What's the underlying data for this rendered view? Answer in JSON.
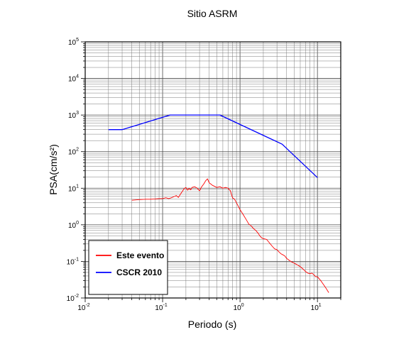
{
  "chart_data": {
    "type": "line",
    "title": "Sitio ASRM",
    "xlabel": "Periodo (s)",
    "ylabel": "PSA(cm/s²)",
    "xscale": "log",
    "yscale": "log",
    "xlim": [
      0.01,
      20
    ],
    "ylim": [
      0.01,
      100000
    ],
    "grid": true,
    "legend_position": "bottom-left",
    "x_ticks": [
      {
        "value": 0.01,
        "base": "10",
        "exp": "-2"
      },
      {
        "value": 0.1,
        "base": "10",
        "exp": "-1"
      },
      {
        "value": 1,
        "base": "10",
        "exp": "0"
      },
      {
        "value": 10,
        "base": "10",
        "exp": "1"
      }
    ],
    "y_ticks": [
      {
        "value": 0.01,
        "base": "10",
        "exp": "-2"
      },
      {
        "value": 0.1,
        "base": "10",
        "exp": "-1"
      },
      {
        "value": 1,
        "base": "10",
        "exp": "0"
      },
      {
        "value": 10,
        "base": "10",
        "exp": "1"
      },
      {
        "value": 100,
        "base": "10",
        "exp": "2"
      },
      {
        "value": 1000,
        "base": "10",
        "exp": "3"
      },
      {
        "value": 10000,
        "base": "10",
        "exp": "4"
      },
      {
        "value": 100000,
        "base": "10",
        "exp": "5"
      }
    ],
    "series": [
      {
        "name": "Este evento",
        "color": "#ff0000",
        "x": [
          0.04,
          0.05,
          0.06,
          0.07,
          0.08,
          0.09,
          0.1,
          0.11,
          0.12,
          0.13,
          0.14,
          0.15,
          0.16,
          0.17,
          0.18,
          0.19,
          0.2,
          0.21,
          0.22,
          0.23,
          0.24,
          0.26,
          0.28,
          0.3,
          0.32,
          0.34,
          0.36,
          0.38,
          0.4,
          0.42,
          0.44,
          0.46,
          0.5,
          0.55,
          0.6,
          0.65,
          0.7,
          0.75,
          0.8,
          0.85,
          0.9,
          0.95,
          1.0,
          1.1,
          1.2,
          1.3,
          1.4,
          1.5,
          1.6,
          1.7,
          1.8,
          1.9,
          2.0,
          2.2,
          2.4,
          2.6,
          2.8,
          3.0,
          3.2,
          3.4,
          3.6,
          3.8,
          4.0,
          4.5,
          5.0,
          5.5,
          6.0,
          6.5,
          7.0,
          7.5,
          8.0,
          8.5,
          9.0,
          9.5,
          10.0,
          11.0,
          12.0,
          13.0,
          14.0
        ],
        "y": [
          4.7,
          4.9,
          5.0,
          5.0,
          5.1,
          5.2,
          5.2,
          5.5,
          5.2,
          5.5,
          5.9,
          6.3,
          5.6,
          6.9,
          8.2,
          9.8,
          10.5,
          8.8,
          10.0,
          9.0,
          10.5,
          11.0,
          10.0,
          8.5,
          11.0,
          13.0,
          16.0,
          18.0,
          14.0,
          13.0,
          12.0,
          11.5,
          10.5,
          11.0,
          10.0,
          10.5,
          10.0,
          8.5,
          5.5,
          5.0,
          4.0,
          3.2,
          2.6,
          1.9,
          1.4,
          1.05,
          0.92,
          0.78,
          0.7,
          0.6,
          0.5,
          0.44,
          0.42,
          0.4,
          0.32,
          0.26,
          0.22,
          0.21,
          0.18,
          0.16,
          0.15,
          0.14,
          0.12,
          0.1,
          0.09,
          0.08,
          0.072,
          0.062,
          0.053,
          0.048,
          0.046,
          0.048,
          0.043,
          0.038,
          0.038,
          0.03,
          0.023,
          0.018,
          0.014
        ]
      },
      {
        "name": "CSCR 2010",
        "color": "#0000ff",
        "x": [
          0.02,
          0.03,
          0.125,
          0.55,
          3.5,
          10.0
        ],
        "y": [
          400,
          400,
          1000,
          1000,
          160,
          19.5
        ]
      }
    ]
  }
}
